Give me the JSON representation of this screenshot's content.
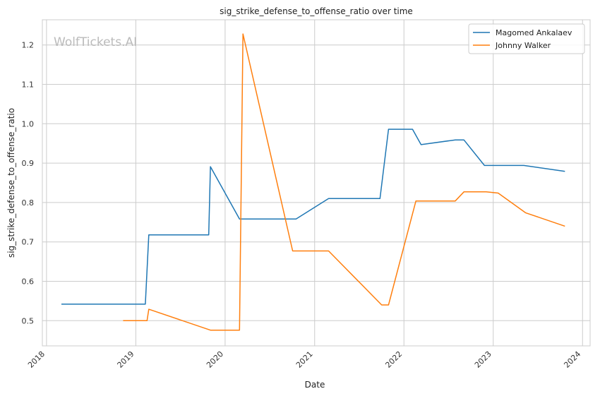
{
  "chart_data": {
    "type": "line",
    "title": "sig_strike_defense_to_offense_ratio over time",
    "xlabel": "Date",
    "ylabel": "sig_strike_defense_to_offense_ratio",
    "watermark": "WolfTickets.AI",
    "x_ticks": [
      "2018",
      "2019",
      "2020",
      "2021",
      "2022",
      "2023",
      "2024"
    ],
    "x_tick_dates": [
      "2018-01-01",
      "2019-01-01",
      "2020-01-01",
      "2021-01-01",
      "2022-01-01",
      "2023-01-01",
      "2024-01-01"
    ],
    "xlim": [
      "2017-12-15",
      "2024-02-01"
    ],
    "y_ticks": [
      "0.5",
      "0.6",
      "0.7",
      "0.8",
      "0.9",
      "1.0",
      "1.1",
      "1.2"
    ],
    "ylim": [
      0.436,
      1.264
    ],
    "grid": true,
    "legend_position": "top-right",
    "series": [
      {
        "name": "Magomed Ankalaev",
        "color": "#1f77b4",
        "points": [
          [
            "2018-03-03",
            0.542
          ],
          [
            "2019-02-09",
            0.542
          ],
          [
            "2019-02-23",
            0.718
          ],
          [
            "2019-10-26",
            0.718
          ],
          [
            "2019-11-02",
            0.891
          ],
          [
            "2020-02-29",
            0.758
          ],
          [
            "2020-10-17",
            0.758
          ],
          [
            "2021-02-27",
            0.81
          ],
          [
            "2021-09-25",
            0.81
          ],
          [
            "2021-10-30",
            0.986
          ],
          [
            "2022-02-05",
            0.986
          ],
          [
            "2022-03-12",
            0.947
          ],
          [
            "2022-07-30",
            0.959
          ],
          [
            "2022-09-03",
            0.959
          ],
          [
            "2022-11-26",
            0.894
          ],
          [
            "2023-05-06",
            0.894
          ],
          [
            "2023-10-21",
            0.879
          ]
        ]
      },
      {
        "name": "Johnny Walker",
        "color": "#ff7f0e",
        "points": [
          [
            "2018-11-10",
            0.5
          ],
          [
            "2019-02-16",
            0.5
          ],
          [
            "2019-02-23",
            0.529
          ],
          [
            "2019-11-02",
            0.476
          ],
          [
            "2020-02-29",
            0.476
          ],
          [
            "2020-03-14",
            1.228
          ],
          [
            "2020-10-03",
            0.677
          ],
          [
            "2021-02-27",
            0.677
          ],
          [
            "2021-10-02",
            0.54
          ],
          [
            "2021-10-30",
            0.54
          ],
          [
            "2022-02-19",
            0.804
          ],
          [
            "2022-07-30",
            0.804
          ],
          [
            "2022-09-03",
            0.827
          ],
          [
            "2022-12-03",
            0.827
          ],
          [
            "2023-01-21",
            0.824
          ],
          [
            "2023-05-13",
            0.774
          ],
          [
            "2023-10-21",
            0.74
          ]
        ]
      }
    ]
  }
}
